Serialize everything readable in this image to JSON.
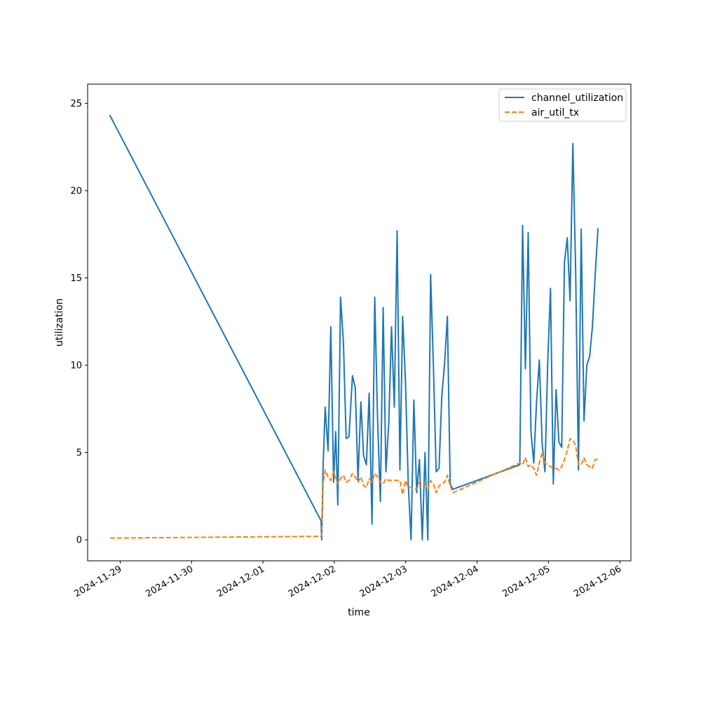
{
  "chart_data": {
    "type": "line",
    "title": "",
    "xlabel": "time",
    "ylabel": "utilization",
    "ylim": [
      -1.2,
      26.1
    ],
    "xlim": [
      "2024-11-28T13:03",
      "2024-12-06T03:43"
    ],
    "grid": false,
    "legend_position": "top-right",
    "x_ticks": [
      "2024-11-29",
      "2024-11-30",
      "2024-12-01",
      "2024-12-02",
      "2024-12-03",
      "2024-12-04",
      "2024-12-05",
      "2024-12-06"
    ],
    "y_ticks": [
      0,
      5,
      10,
      15,
      20,
      25
    ],
    "series": [
      {
        "name": "channel_utilization",
        "color": "#1f77b4",
        "style": "solid",
        "points": [
          [
            "2024-11-28T20:34",
            24.3
          ],
          [
            "2024-12-01T19:31",
            1.1
          ],
          [
            "2024-12-01T19:45",
            0.0
          ],
          [
            "2024-12-01T20:13",
            4.2
          ],
          [
            "2024-12-01T20:56",
            7.6
          ],
          [
            "2024-12-01T21:53",
            5.1
          ],
          [
            "2024-12-01T22:49",
            12.2
          ],
          [
            "2024-12-01T23:45",
            3.3
          ],
          [
            "2024-12-02T00:28",
            6.2
          ],
          [
            "2024-12-02T01:10",
            2.0
          ],
          [
            "2024-12-02T02:06",
            13.9
          ],
          [
            "2024-12-02T03:03",
            11.3
          ],
          [
            "2024-12-02T03:59",
            5.8
          ],
          [
            "2024-12-02T04:55",
            5.9
          ],
          [
            "2024-12-02T06:06",
            9.4
          ],
          [
            "2024-12-02T07:02",
            8.7
          ],
          [
            "2024-12-02T07:58",
            3.4
          ],
          [
            "2024-12-02T08:55",
            7.9
          ],
          [
            "2024-12-02T09:51",
            4.8
          ],
          [
            "2024-12-02T10:47",
            4.3
          ],
          [
            "2024-12-02T11:43",
            8.4
          ],
          [
            "2024-12-02T12:40",
            0.9
          ],
          [
            "2024-12-02T13:36",
            13.9
          ],
          [
            "2024-12-02T14:32",
            6.9
          ],
          [
            "2024-12-02T15:29",
            2.2
          ],
          [
            "2024-12-02T16:25",
            13.3
          ],
          [
            "2024-12-02T17:21",
            3.9
          ],
          [
            "2024-12-02T18:18",
            6.7
          ],
          [
            "2024-12-02T19:14",
            12.2
          ],
          [
            "2024-12-02T20:10",
            7.6
          ],
          [
            "2024-12-02T21:07",
            17.7
          ],
          [
            "2024-12-02T22:03",
            4.0
          ],
          [
            "2024-12-02T22:59",
            12.8
          ],
          [
            "2024-12-02T23:56",
            9.0
          ],
          [
            "2024-12-03T00:52",
            3.2
          ],
          [
            "2024-12-03T01:48",
            0.0
          ],
          [
            "2024-12-03T02:45",
            8.0
          ],
          [
            "2024-12-03T03:41",
            2.7
          ],
          [
            "2024-12-03T04:37",
            4.6
          ],
          [
            "2024-12-03T05:34",
            0.0
          ],
          [
            "2024-12-03T06:30",
            5.0
          ],
          [
            "2024-12-03T07:26",
            0.0
          ],
          [
            "2024-12-03T08:23",
            15.2
          ],
          [
            "2024-12-03T09:19",
            9.9
          ],
          [
            "2024-12-03T10:15",
            3.9
          ],
          [
            "2024-12-03T11:12",
            4.1
          ],
          [
            "2024-12-03T12:08",
            8.2
          ],
          [
            "2024-12-03T13:04",
            10.1
          ],
          [
            "2024-12-03T14:01",
            12.8
          ],
          [
            "2024-12-03T14:57",
            3.2
          ],
          [
            "2024-12-03T15:53",
            2.9
          ],
          [
            "2024-12-04T14:22",
            4.3
          ],
          [
            "2024-12-04T15:18",
            18.0
          ],
          [
            "2024-12-04T16:14",
            9.8
          ],
          [
            "2024-12-04T17:11",
            17.6
          ],
          [
            "2024-12-04T18:07",
            6.2
          ],
          [
            "2024-12-04T19:03",
            4.4
          ],
          [
            "2024-12-04T20:00",
            7.9
          ],
          [
            "2024-12-04T20:56",
            10.3
          ],
          [
            "2024-12-04T21:52",
            5.5
          ],
          [
            "2024-12-04T22:49",
            3.9
          ],
          [
            "2024-12-04T23:45",
            10.1
          ],
          [
            "2024-12-05T00:41",
            14.4
          ],
          [
            "2024-12-05T01:38",
            3.2
          ],
          [
            "2024-12-05T02:34",
            8.6
          ],
          [
            "2024-12-05T03:30",
            5.6
          ],
          [
            "2024-12-05T04:27",
            5.3
          ],
          [
            "2024-12-05T05:23",
            15.9
          ],
          [
            "2024-12-05T06:19",
            17.3
          ],
          [
            "2024-12-05T07:16",
            13.7
          ],
          [
            "2024-12-05T08:12",
            22.7
          ],
          [
            "2024-12-05T09:08",
            15.4
          ],
          [
            "2024-12-05T10:05",
            4.0
          ],
          [
            "2024-12-05T11:01",
            17.8
          ],
          [
            "2024-12-05T11:57",
            6.8
          ],
          [
            "2024-12-05T12:54",
            10.0
          ],
          [
            "2024-12-05T13:50",
            10.5
          ],
          [
            "2024-12-05T14:46",
            12.2
          ],
          [
            "2024-12-05T15:43",
            15.2
          ],
          [
            "2024-12-05T16:39",
            17.8
          ]
        ]
      },
      {
        "name": "air_util_tx",
        "color": "#ff7f0e",
        "style": "dashed",
        "points": [
          [
            "2024-11-28T20:34",
            0.1
          ],
          [
            "2024-12-01T19:31",
            0.2
          ],
          [
            "2024-12-01T19:45",
            0.3
          ],
          [
            "2024-12-01T20:13",
            3.2
          ],
          [
            "2024-12-01T20:56",
            4.0
          ],
          [
            "2024-12-01T21:53",
            3.6
          ],
          [
            "2024-12-01T22:49",
            3.4
          ],
          [
            "2024-12-01T23:45",
            3.9
          ],
          [
            "2024-12-02T00:28",
            3.5
          ],
          [
            "2024-12-02T01:10",
            3.2
          ],
          [
            "2024-12-02T02:06",
            3.5
          ],
          [
            "2024-12-02T03:03",
            3.7
          ],
          [
            "2024-12-02T03:59",
            3.3
          ],
          [
            "2024-12-02T04:55",
            3.4
          ],
          [
            "2024-12-02T06:06",
            3.8
          ],
          [
            "2024-12-02T07:02",
            3.6
          ],
          [
            "2024-12-02T07:58",
            3.3
          ],
          [
            "2024-12-02T08:55",
            3.6
          ],
          [
            "2024-12-02T09:51",
            3.1
          ],
          [
            "2024-12-02T10:47",
            3.0
          ],
          [
            "2024-12-02T11:43",
            3.5
          ],
          [
            "2024-12-02T12:40",
            3.3
          ],
          [
            "2024-12-02T13:36",
            3.8
          ],
          [
            "2024-12-02T14:32",
            3.6
          ],
          [
            "2024-12-02T15:29",
            3.3
          ],
          [
            "2024-12-02T16:25",
            3.2
          ],
          [
            "2024-12-02T17:21",
            3.5
          ],
          [
            "2024-12-02T18:18",
            3.4
          ],
          [
            "2024-12-02T19:14",
            3.4
          ],
          [
            "2024-12-02T20:10",
            3.4
          ],
          [
            "2024-12-02T21:07",
            3.4
          ],
          [
            "2024-12-02T22:03",
            3.4
          ],
          [
            "2024-12-02T22:59",
            2.6
          ],
          [
            "2024-12-02T23:56",
            3.4
          ],
          [
            "2024-12-03T00:52",
            3.0
          ],
          [
            "2024-12-03T01:48",
            3.0
          ],
          [
            "2024-12-03T02:45",
            2.9
          ],
          [
            "2024-12-03T03:41",
            2.9
          ],
          [
            "2024-12-03T04:37",
            3.3
          ],
          [
            "2024-12-03T05:34",
            3.2
          ],
          [
            "2024-12-03T06:30",
            3.2
          ],
          [
            "2024-12-03T07:26",
            2.9
          ],
          [
            "2024-12-03T08:23",
            3.4
          ],
          [
            "2024-12-03T09:19",
            3.2
          ],
          [
            "2024-12-03T10:15",
            2.7
          ],
          [
            "2024-12-03T11:12",
            3.1
          ],
          [
            "2024-12-03T12:08",
            3.2
          ],
          [
            "2024-12-03T13:04",
            3.3
          ],
          [
            "2024-12-03T14:01",
            3.7
          ],
          [
            "2024-12-03T14:57",
            3.1
          ],
          [
            "2024-12-03T15:53",
            2.7
          ],
          [
            "2024-12-04T14:22",
            4.4
          ],
          [
            "2024-12-04T15:18",
            4.3
          ],
          [
            "2024-12-04T16:14",
            4.7
          ],
          [
            "2024-12-04T17:11",
            4.2
          ],
          [
            "2024-12-04T18:07",
            4.3
          ],
          [
            "2024-12-04T19:03",
            4.1
          ],
          [
            "2024-12-04T20:00",
            3.7
          ],
          [
            "2024-12-04T20:56",
            4.4
          ],
          [
            "2024-12-04T21:52",
            5.0
          ],
          [
            "2024-12-04T22:49",
            4.4
          ],
          [
            "2024-12-04T23:45",
            4.3
          ],
          [
            "2024-12-05T00:41",
            4.2
          ],
          [
            "2024-12-05T01:38",
            4.1
          ],
          [
            "2024-12-05T02:34",
            4.1
          ],
          [
            "2024-12-05T03:30",
            4.0
          ],
          [
            "2024-12-05T04:27",
            4.2
          ],
          [
            "2024-12-05T05:23",
            4.6
          ],
          [
            "2024-12-05T06:19",
            5.1
          ],
          [
            "2024-12-05T07:16",
            5.8
          ],
          [
            "2024-12-05T08:12",
            5.7
          ],
          [
            "2024-12-05T09:08",
            5.4
          ],
          [
            "2024-12-05T10:05",
            4.3
          ],
          [
            "2024-12-05T11:01",
            4.3
          ],
          [
            "2024-12-05T11:57",
            4.7
          ],
          [
            "2024-12-05T12:54",
            4.3
          ],
          [
            "2024-12-05T13:50",
            4.2
          ],
          [
            "2024-12-05T14:46",
            4.1
          ],
          [
            "2024-12-05T15:43",
            4.6
          ],
          [
            "2024-12-05T16:39",
            4.6
          ]
        ]
      }
    ]
  }
}
